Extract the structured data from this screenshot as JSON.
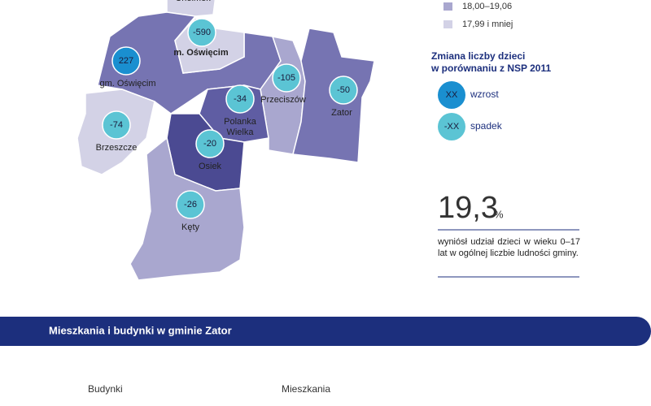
{
  "map": {
    "regions": [
      {
        "name": "Chełmek",
        "color": "#d3d2e6"
      },
      {
        "name": "gm. Oświęcim",
        "value": 227,
        "color": "#7674b2"
      },
      {
        "name": "m. Oświęcim",
        "value": -590,
        "color": "#d3d2e6"
      },
      {
        "name": "Przeciszów",
        "value": -105,
        "color": "#a9a7cf"
      },
      {
        "name": "Zator",
        "value": -50,
        "color": "#7674b2"
      },
      {
        "name": "Polanka Wielka",
        "value": -34,
        "color": "#5f5da3"
      },
      {
        "name": "Brzeszcze",
        "value": -74,
        "color": "#d3d2e6"
      },
      {
        "name": "Osiek",
        "value": -20,
        "color": "#4b4a92"
      },
      {
        "name": "Kęty",
        "value": -26,
        "color": "#a9a7cf"
      }
    ]
  },
  "legend": {
    "classes": [
      {
        "label": "18,00–19,06",
        "color": "#a9a7cf"
      },
      {
        "label": "17,99 i mniej",
        "color": "#d3d2e6"
      }
    ],
    "change_title": "Zmiana liczby dzieci w porównaniu z NSP 2011",
    "change": [
      {
        "symbol": "XX",
        "label": "wzrost",
        "color": "#1a8fd0"
      },
      {
        "symbol": "-XX",
        "label": "spadek",
        "color": "#5bc4d4"
      }
    ]
  },
  "stat": {
    "value": "19,3",
    "unit": "%",
    "text": "wyniósł udział dzieci w wieku 0–17 lat w ogólnej liczbie ludności gminy."
  },
  "section": {
    "title": "Mieszkania i budynki w gminie Zator",
    "columns": [
      "Budynki",
      "Mieszkania"
    ]
  }
}
